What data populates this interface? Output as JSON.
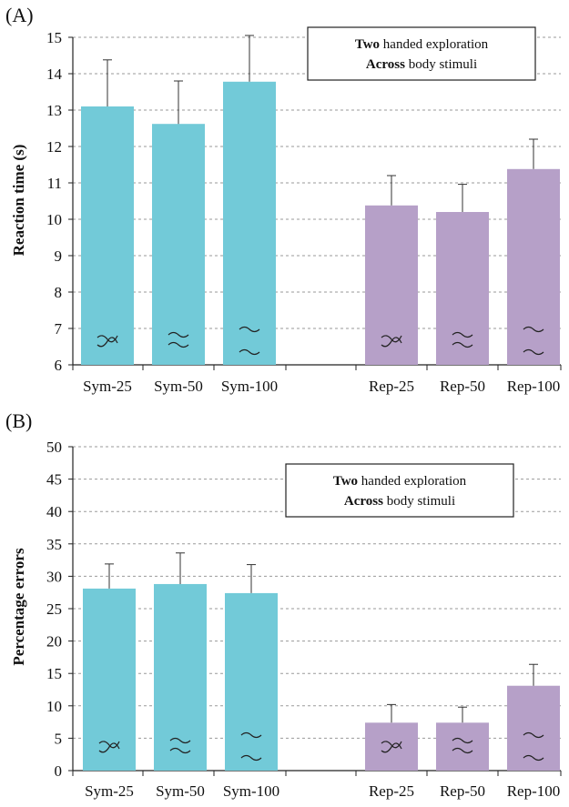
{
  "chart_data": [
    {
      "type": "bar",
      "panel_label": "(A)",
      "ylabel": "Reaction time (s)",
      "xlabel": "",
      "ylim": [
        6,
        15
      ],
      "yticks": [
        6,
        7,
        8,
        9,
        10,
        11,
        12,
        13,
        14,
        15
      ],
      "grid": true,
      "legend": {
        "line1_bold": "Two",
        "line1_rest": " handed exploration",
        "line2_bold": "Across",
        "line2_rest": " body stimuli",
        "placement": "top-right"
      },
      "categories": [
        "Sym-25",
        "Sym-50",
        "Sym-100",
        "Rep-25",
        "Rep-50",
        "Rep-100"
      ],
      "values": [
        13.1,
        12.62,
        13.78,
        10.38,
        10.2,
        11.38
      ],
      "errors": [
        1.28,
        1.18,
        1.27,
        0.82,
        0.76,
        0.82
      ],
      "colors": [
        "#72cad8",
        "#72cad8",
        "#72cad8",
        "#b6a0c8",
        "#b6a0c8",
        "#b6a0c8"
      ],
      "stimulus_icons": [
        "cross",
        "pair",
        "wide",
        "cross",
        "pair",
        "wide"
      ]
    },
    {
      "type": "bar",
      "panel_label": "(B)",
      "ylabel": "Percentage errors",
      "xlabel": "",
      "ylim": [
        0,
        50
      ],
      "yticks": [
        0,
        5,
        10,
        15,
        20,
        25,
        30,
        35,
        40,
        45,
        50
      ],
      "grid": true,
      "legend": {
        "line1_bold": "Two",
        "line1_rest": " handed exploration",
        "line2_bold": "Across",
        "line2_rest": " body stimuli",
        "placement": "top-right"
      },
      "categories": [
        "Sym-25",
        "Sym-50",
        "Sym-100",
        "Rep-25",
        "Rep-50",
        "Rep-100"
      ],
      "values": [
        28.1,
        28.8,
        27.4,
        7.4,
        7.4,
        13.1
      ],
      "errors": [
        3.8,
        4.8,
        4.4,
        2.8,
        2.4,
        3.3
      ],
      "colors": [
        "#72cad8",
        "#72cad8",
        "#72cad8",
        "#b6a0c8",
        "#b6a0c8",
        "#b6a0c8"
      ],
      "stimulus_icons": [
        "cross",
        "pair",
        "wide",
        "cross",
        "pair",
        "wide"
      ]
    }
  ]
}
